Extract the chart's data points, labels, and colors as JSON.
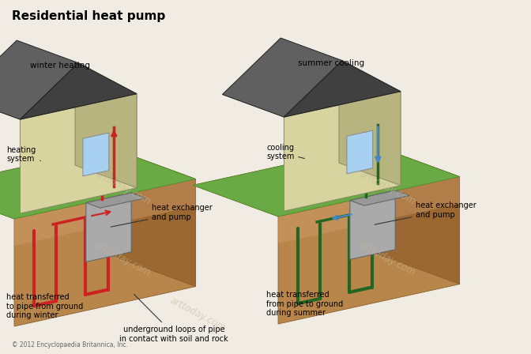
{
  "title": "Residential heat pump",
  "left_label": "winter heating",
  "right_label": "summer cooling",
  "left_annotations": [
    {
      "text": "heating\nsystem"
    },
    {
      "text": "heat exchanger\nand pump"
    },
    {
      "text": "heat transferred\nto pipe from ground\nduring winter"
    }
  ],
  "right_annotations": [
    {
      "text": "cooling\nsystem"
    },
    {
      "text": "heat exchanger\nand pump"
    },
    {
      "text": "heat transferred\nfrom pipe to ground\nduring summer"
    }
  ],
  "bottom_annotation": "underground loops of pipe\nin contact with soil and rock",
  "copyright": "© 2012 Encyclopaedia Britannica, Inc.",
  "bg_color": "#f0ece4",
  "ground_front_color": "#b8864a",
  "ground_top_color": "#c8966a",
  "ground_right_color": "#9a6830",
  "ground_highlight_color": "#d4a070",
  "pipe_color_winter": "#cc2222",
  "pipe_color_summer": "#226622",
  "pipe_highlight_winter": "#ff6666",
  "pipe_highlight_summer": "#44aa44",
  "house_wall_color": "#d8d4a0",
  "house_wall_right_color": "#b8b480",
  "house_roof_color": "#404040",
  "house_floor_color": "#c0b890",
  "grass_color": "#6aaa44",
  "grass_dark_color": "#4a8a24",
  "arrow_up_color": "#cc2222",
  "arrow_down_color": "#4488cc",
  "hx_color": "#aaaaaa",
  "hx_edge_color": "#777777",
  "annotation_line_color": "#333333",
  "figsize": [
    6.72,
    4.48
  ],
  "dpi": 100,
  "title_fontsize": 11,
  "label_fontsize": 7.5,
  "annotation_fontsize": 7,
  "watermark_text": "arttoday.com",
  "watermark_color": "#c8b898",
  "watermark_alpha": 0.55
}
